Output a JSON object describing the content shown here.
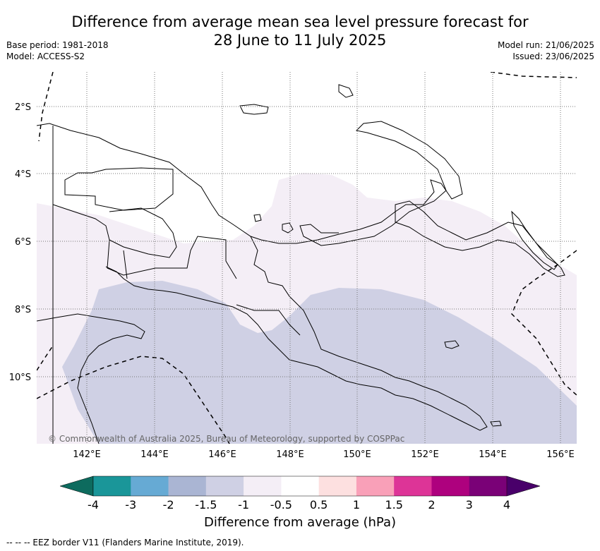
{
  "header": {
    "title_line1": "Difference from average mean sea level pressure forecast for",
    "title_line2": "28 June to 11 July 2025",
    "base_period": "Base period: 1981-2018",
    "model": "Model: ACCESS-S2",
    "model_run": "Model run: 21/06/2025",
    "issued": "Issued: 23/06/2025"
  },
  "map": {
    "lat_labels": [
      "2°S",
      "4°S",
      "6°S",
      "8°S",
      "10°S"
    ],
    "lon_labels": [
      "142°E",
      "144°E",
      "146°E",
      "148°E",
      "150°E",
      "152°E",
      "154°E",
      "156°E"
    ],
    "copyright": "© Commonwealth of Australia 2025, Bureau of Meteorology, supported by COSPPac",
    "fill_colors": {
      "neg_0_5_to_neg_1": "#f4eef6",
      "neg_1_to_neg_1_5": "#cfd0e4"
    }
  },
  "colorbar": {
    "title": "Difference from average (hPa)",
    "ticks": [
      "-4",
      "-3",
      "-2",
      "-1.5",
      "-1",
      "-0.5",
      "0.5",
      "1",
      "1.5",
      "2",
      "3",
      "4"
    ],
    "colors": [
      "#0d6b5e",
      "#1a9699",
      "#66aad4",
      "#aab5d3",
      "#cfd0e4",
      "#f4eef6",
      "#ffffff",
      "#fde0e0",
      "#f9a0b8",
      "#dd3497",
      "#ae017e",
      "#7a0177",
      "#49006a"
    ]
  },
  "footnote": "-- -- -- EEZ border V11 (Flanders Marine Institute, 2019)."
}
